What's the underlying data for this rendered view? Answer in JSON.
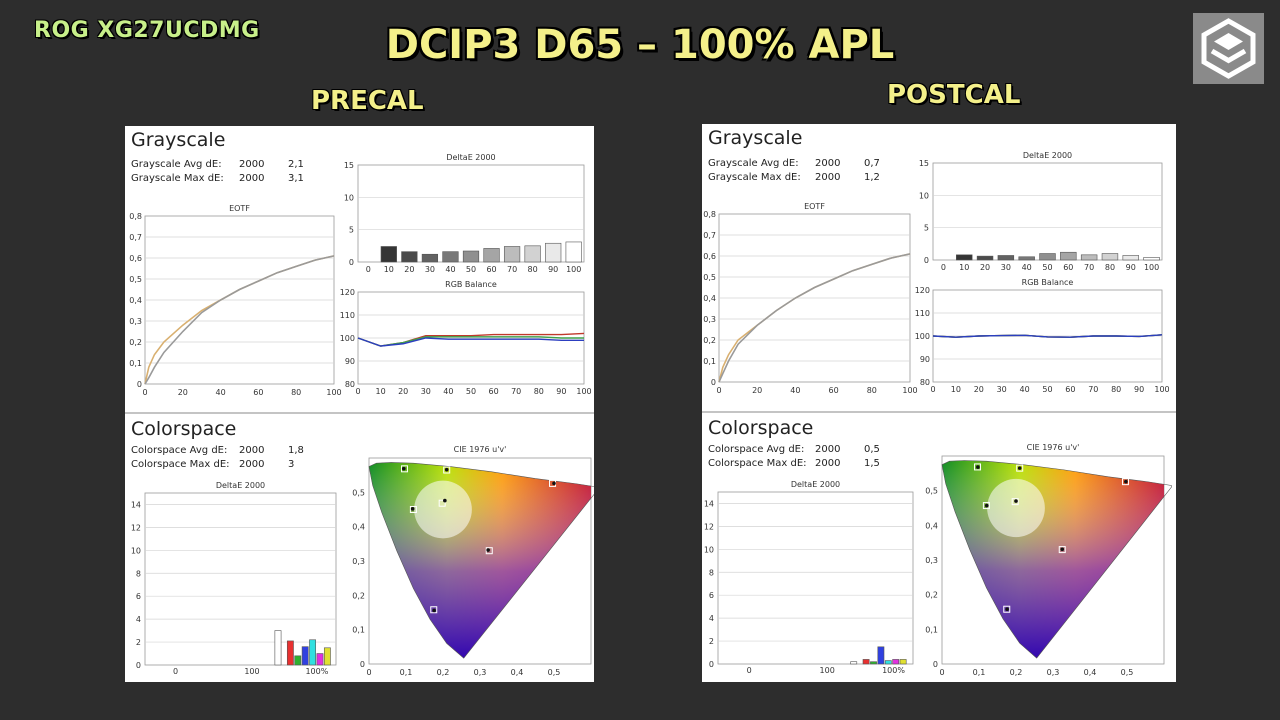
{
  "header": {
    "model": "ROG XG27UCDMG",
    "title": "DCIP3 D65 – 100% APL",
    "left_label": "PRECAL",
    "right_label": "POSTCAL"
  },
  "labels": {
    "grayscale": "Grayscale",
    "grayscale_avg": "Grayscale Avg dE:",
    "grayscale_max": "Grayscale Max dE:",
    "colorspace": "Colorspace",
    "colorspace_avg": "Colorspace Avg dE:",
    "colorspace_max": "Colorspace Max dE:",
    "standard": "2000"
  },
  "chart_data": [
    {
      "panel": "precal",
      "stats": {
        "grayscale_avg": "2,1",
        "grayscale_max": "3,1",
        "colorspace_avg": "1,8",
        "colorspace_max": "3"
      },
      "eotf": {
        "type": "line",
        "title": "EOTF",
        "xlim": [
          0,
          100
        ],
        "ylim": [
          0,
          0.8
        ],
        "xticks": [
          "0",
          "20",
          "40",
          "60",
          "80",
          "100"
        ],
        "yticks": [
          "0",
          "0,1",
          "0,2",
          "0,3",
          "0,4",
          "0,5",
          "0,6",
          "0,7",
          "0,8"
        ],
        "x": [
          0,
          2,
          5,
          10,
          20,
          30,
          40,
          50,
          60,
          70,
          80,
          90,
          100
        ],
        "series": [
          {
            "color": "#d9b070",
            "values": [
              0,
              0.08,
              0.14,
              0.2,
              0.28,
              0.35,
              0.4,
              0.45,
              0.49,
              0.53,
              0.56,
              0.59,
              0.61
            ]
          },
          {
            "color": "#9a9a9a",
            "values": [
              0,
              0.03,
              0.08,
              0.15,
              0.25,
              0.34,
              0.4,
              0.45,
              0.49,
              0.53,
              0.56,
              0.59,
              0.61
            ]
          }
        ]
      },
      "grayscale_de": {
        "type": "bar",
        "title": "DeltaE 2000",
        "ylim": [
          0,
          15
        ],
        "yticks": [
          "0",
          "5",
          "10",
          "15"
        ],
        "categories": [
          "0",
          "10",
          "20",
          "30",
          "40",
          "50",
          "60",
          "70",
          "80",
          "90",
          "100"
        ],
        "values": [
          0,
          2.4,
          1.6,
          1.2,
          1.6,
          1.7,
          2.1,
          2.4,
          2.5,
          2.9,
          3.1
        ]
      },
      "rgb_balance": {
        "type": "line",
        "title": "RGB Balance",
        "ylim": [
          80,
          120
        ],
        "yticks": [
          "80",
          "90",
          "100",
          "110",
          "120"
        ],
        "categories": [
          "0",
          "10",
          "20",
          "30",
          "40",
          "50",
          "60",
          "70",
          "80",
          "90",
          "100"
        ],
        "series": [
          {
            "color": "#c0392b",
            "values": [
              100,
              96.5,
              98,
              101,
              101,
              101,
              101.5,
              101.5,
              101.5,
              101.5,
              102
            ]
          },
          {
            "color": "#3fa04a",
            "values": [
              100,
              96.5,
              98,
              100.5,
              100.5,
              100.5,
              100.5,
              100.5,
              100.5,
              100,
              100
            ]
          },
          {
            "color": "#2c3ec0",
            "values": [
              100,
              96.5,
              97.5,
              100,
              99.5,
              99.5,
              99.5,
              99.5,
              99.5,
              99,
              99
            ]
          }
        ]
      },
      "colorspace_de": {
        "type": "bar",
        "title": "DeltaE 2000",
        "ylim": [
          0,
          15
        ],
        "yticks": [
          "0",
          "2",
          "4",
          "6",
          "8",
          "10",
          "12",
          "14"
        ],
        "xticks": [
          "0",
          "100",
          "100%"
        ],
        "bars": [
          {
            "color": "#ffffff",
            "value": 3.0
          },
          {
            "color": "#e83030",
            "value": 2.1
          },
          {
            "color": "#30b030",
            "value": 0.8
          },
          {
            "color": "#3040e0",
            "value": 1.6
          },
          {
            "color": "#30e0e0",
            "value": 2.2
          },
          {
            "color": "#e030e0",
            "value": 1.0
          },
          {
            "color": "#e0e030",
            "value": 1.5
          }
        ]
      },
      "cie": {
        "type": "scatter",
        "title": "CIE 1976 u'v'",
        "xlim": [
          0,
          0.6
        ],
        "ylim": [
          0,
          0.6
        ],
        "xticks": [
          "0",
          "0,1",
          "0,2",
          "0,3",
          "0,4",
          "0,5"
        ],
        "yticks": [
          "0",
          "0,1",
          "0,2",
          "0,3",
          "0,4",
          "0,5"
        ],
        "targets": [
          [
            0.496,
            0.526
          ],
          [
            0.096,
            0.5685
          ],
          [
            0.175,
            0.158
          ],
          [
            0.1978,
            0.4683
          ],
          [
            0.12,
            0.45
          ],
          [
            0.325,
            0.33
          ],
          [
            0.21,
            0.565
          ]
        ],
        "measured": [
          [
            0.5,
            0.526
          ],
          [
            0.094,
            0.569
          ],
          [
            0.176,
            0.156
          ],
          [
            0.205,
            0.476
          ],
          [
            0.118,
            0.452
          ],
          [
            0.322,
            0.332
          ],
          [
            0.21,
            0.566
          ]
        ]
      }
    },
    {
      "panel": "postcal",
      "stats": {
        "grayscale_avg": "0,7",
        "grayscale_max": "1,2",
        "colorspace_avg": "0,5",
        "colorspace_max": "1,5"
      },
      "eotf": {
        "type": "line",
        "title": "EOTF",
        "xlim": [
          0,
          100
        ],
        "ylim": [
          0,
          0.8
        ],
        "xticks": [
          "0",
          "20",
          "40",
          "60",
          "80",
          "100"
        ],
        "yticks": [
          "0",
          "0,1",
          "0,2",
          "0,3",
          "0,4",
          "0,5",
          "0,6",
          "0,7",
          "0,8"
        ],
        "x": [
          0,
          2,
          5,
          10,
          20,
          30,
          40,
          50,
          60,
          70,
          80,
          90,
          100
        ],
        "series": [
          {
            "color": "#d9b070",
            "values": [
              0,
              0.07,
              0.13,
              0.2,
              0.27,
              0.34,
              0.4,
              0.45,
              0.49,
              0.53,
              0.56,
              0.59,
              0.61
            ]
          },
          {
            "color": "#9a9a9a",
            "values": [
              0,
              0.04,
              0.1,
              0.18,
              0.27,
              0.34,
              0.4,
              0.45,
              0.49,
              0.53,
              0.56,
              0.59,
              0.61
            ]
          }
        ]
      },
      "grayscale_de": {
        "type": "bar",
        "title": "DeltaE 2000",
        "ylim": [
          0,
          15
        ],
        "yticks": [
          "0",
          "5",
          "10",
          "15"
        ],
        "categories": [
          "0",
          "10",
          "20",
          "30",
          "40",
          "50",
          "60",
          "70",
          "80",
          "90",
          "100"
        ],
        "values": [
          0,
          0.8,
          0.6,
          0.7,
          0.5,
          1.0,
          1.2,
          0.8,
          1.0,
          0.7,
          0.4
        ]
      },
      "rgb_balance": {
        "type": "line",
        "title": "RGB Balance",
        "ylim": [
          80,
          120
        ],
        "yticks": [
          "80",
          "90",
          "100",
          "110",
          "120"
        ],
        "categories": [
          "0",
          "10",
          "20",
          "30",
          "40",
          "50",
          "60",
          "70",
          "80",
          "90",
          "100"
        ],
        "series": [
          {
            "color": "#c0392b",
            "values": [
              100,
              99.5,
              100,
              100.2,
              100.3,
              99.6,
              99.5,
              100,
              100,
              99.8,
              100.5
            ]
          },
          {
            "color": "#3fa04a",
            "values": [
              100,
              99.5,
              100,
              100.2,
              100.3,
              99.6,
              99.5,
              100,
              100,
              99.8,
              100.5
            ]
          },
          {
            "color": "#2c3ec0",
            "values": [
              100,
              99.5,
              100,
              100.2,
              100.3,
              99.6,
              99.5,
              100,
              100,
              99.8,
              100.5
            ]
          }
        ]
      },
      "colorspace_de": {
        "type": "bar",
        "title": "DeltaE 2000",
        "ylim": [
          0,
          15
        ],
        "yticks": [
          "0",
          "2",
          "4",
          "6",
          "8",
          "10",
          "12",
          "14"
        ],
        "xticks": [
          "0",
          "100",
          "100%"
        ],
        "bars": [
          {
            "color": "#ffffff",
            "value": 0.2
          },
          {
            "color": "#e83030",
            "value": 0.4
          },
          {
            "color": "#30b030",
            "value": 0.2
          },
          {
            "color": "#3040e0",
            "value": 1.5
          },
          {
            "color": "#30e0e0",
            "value": 0.3
          },
          {
            "color": "#e030e0",
            "value": 0.4
          },
          {
            "color": "#e0e030",
            "value": 0.4
          }
        ]
      },
      "cie": {
        "type": "scatter",
        "title": "CIE 1976 u'v'",
        "xlim": [
          0,
          0.6
        ],
        "ylim": [
          0,
          0.6
        ],
        "xticks": [
          "0",
          "0,1",
          "0,2",
          "0,3",
          "0,4",
          "0,5"
        ],
        "yticks": [
          "0",
          "0,1",
          "0,2",
          "0,3",
          "0,4",
          "0,5"
        ],
        "targets": [
          [
            0.496,
            0.526
          ],
          [
            0.096,
            0.5685
          ],
          [
            0.175,
            0.158
          ],
          [
            0.1978,
            0.4683
          ],
          [
            0.12,
            0.457
          ],
          [
            0.325,
            0.33
          ],
          [
            0.21,
            0.565
          ]
        ],
        "measured": [
          [
            0.497,
            0.526
          ],
          [
            0.097,
            0.568
          ],
          [
            0.176,
            0.158
          ],
          [
            0.2,
            0.47
          ],
          [
            0.121,
            0.457
          ],
          [
            0.325,
            0.331
          ],
          [
            0.21,
            0.565
          ]
        ]
      }
    }
  ]
}
